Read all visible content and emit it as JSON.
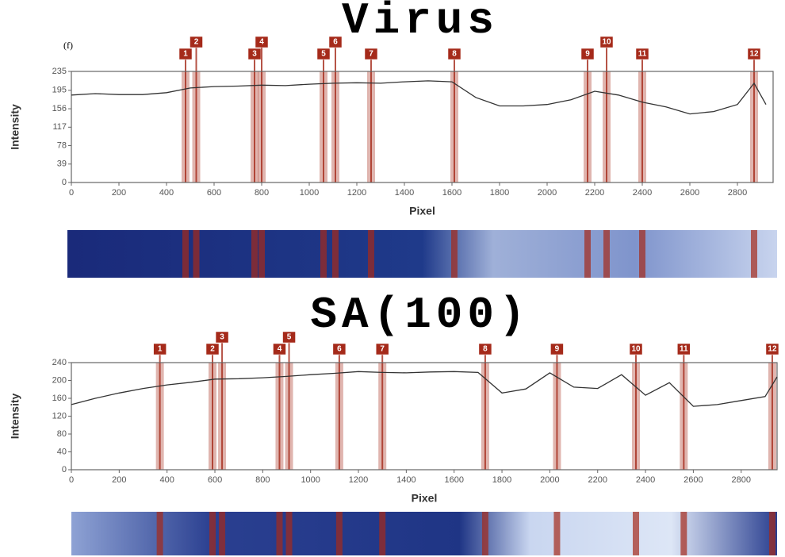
{
  "panel_label": "(f)",
  "chart_data": [
    {
      "type": "line",
      "title": "Virus",
      "xlabel": "Pixel",
      "ylabel": "Intensity",
      "x": [
        0,
        100,
        200,
        300,
        400,
        500,
        600,
        700,
        800,
        900,
        1000,
        1100,
        1200,
        1300,
        1400,
        1500,
        1600,
        1700,
        1800,
        1900,
        2000,
        2100,
        2200,
        2300,
        2400,
        2500,
        2600,
        2700,
        2800,
        2870,
        2920
      ],
      "values": [
        185,
        188,
        186,
        186,
        190,
        200,
        203,
        204,
        206,
        205,
        208,
        210,
        211,
        210,
        213,
        215,
        213,
        180,
        162,
        162,
        165,
        175,
        193,
        185,
        170,
        160,
        145,
        150,
        165,
        210,
        165
      ],
      "color": "#333333",
      "xlim": [
        0,
        2950
      ],
      "ylim": [
        0,
        235
      ],
      "xticks": [
        0,
        200,
        400,
        600,
        800,
        1000,
        1200,
        1400,
        1600,
        1800,
        2000,
        2200,
        2400,
        2600,
        2800
      ],
      "yticks": [
        0,
        39,
        78,
        117,
        156,
        195,
        235
      ],
      "marker_color": "#a52a1a",
      "markers": [
        {
          "label": "1",
          "x": 480
        },
        {
          "label": "2",
          "x": 525
        },
        {
          "label": "3",
          "x": 770
        },
        {
          "label": "4",
          "x": 800
        },
        {
          "label": "5",
          "x": 1060
        },
        {
          "label": "6",
          "x": 1110
        },
        {
          "label": "7",
          "x": 1260
        },
        {
          "label": "8",
          "x": 1610
        },
        {
          "label": "9",
          "x": 2170
        },
        {
          "label": "10",
          "x": 2250
        },
        {
          "label": "11",
          "x": 2400
        },
        {
          "label": "12",
          "x": 2870
        }
      ]
    },
    {
      "type": "line",
      "title": "SA(100)",
      "xlabel": "Pixel",
      "ylabel": "Intensity",
      "x": [
        0,
        100,
        200,
        300,
        400,
        500,
        600,
        700,
        800,
        900,
        1000,
        1100,
        1200,
        1300,
        1400,
        1500,
        1600,
        1700,
        1800,
        1900,
        2000,
        2100,
        2200,
        2300,
        2400,
        2500,
        2600,
        2700,
        2800,
        2900,
        2950
      ],
      "values": [
        146,
        160,
        172,
        182,
        190,
        196,
        203,
        204,
        206,
        209,
        213,
        216,
        220,
        218,
        217,
        219,
        220,
        218,
        172,
        181,
        217,
        185,
        182,
        213,
        167,
        195,
        142,
        146,
        155,
        164,
        208
      ],
      "color": "#333333",
      "xlim": [
        0,
        2950
      ],
      "ylim": [
        0,
        240
      ],
      "xticks": [
        0,
        200,
        400,
        600,
        800,
        1000,
        1200,
        1400,
        1600,
        1800,
        2000,
        2200,
        2400,
        2600,
        2800
      ],
      "yticks": [
        0,
        40,
        80,
        120,
        160,
        200,
        240
      ],
      "marker_color": "#a52a1a",
      "markers": [
        {
          "label": "1",
          "x": 370
        },
        {
          "label": "2",
          "x": 590
        },
        {
          "label": "3",
          "x": 630
        },
        {
          "label": "4",
          "x": 870
        },
        {
          "label": "5",
          "x": 910
        },
        {
          "label": "6",
          "x": 1120
        },
        {
          "label": "7",
          "x": 1300
        },
        {
          "label": "8",
          "x": 1730
        },
        {
          "label": "9",
          "x": 2030
        },
        {
          "label": "10",
          "x": 2360
        },
        {
          "label": "11",
          "x": 2560
        },
        {
          "label": "12",
          "x": 2930
        }
      ]
    }
  ]
}
